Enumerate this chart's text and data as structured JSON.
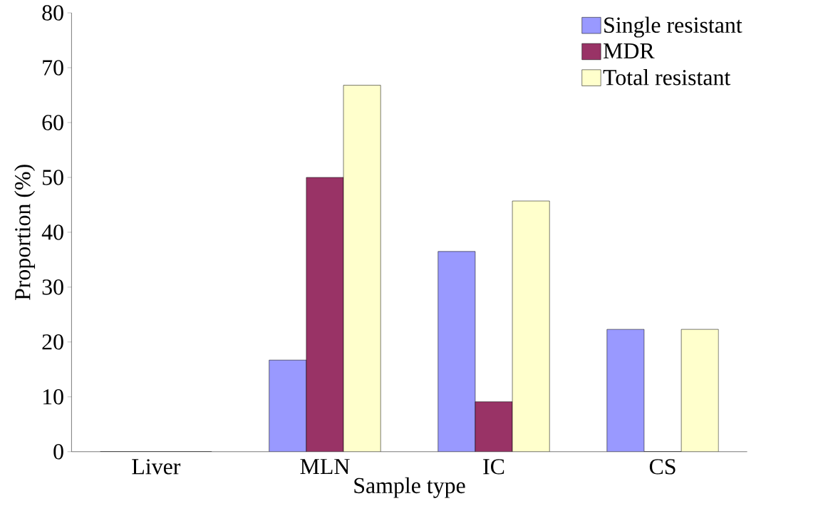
{
  "chart_data": {
    "type": "bar",
    "xlabel": "Sample type",
    "ylabel": "Proportion (%)",
    "categories": [
      "Liver",
      "MLN",
      "IC",
      "CS"
    ],
    "series": [
      {
        "name": "Single resistant",
        "color": "#9999ff",
        "values": [
          0,
          16.7,
          36.5,
          22.3
        ]
      },
      {
        "name": "MDR",
        "color": "#993366",
        "values": [
          0,
          50,
          9.1,
          0
        ]
      },
      {
        "name": "Total resistant",
        "color": "#ffffcc",
        "values": [
          0,
          66.8,
          45.7,
          22.3
        ]
      }
    ],
    "ylim": [
      0,
      80
    ],
    "yticks": [
      0,
      10,
      20,
      30,
      40,
      50,
      60,
      70,
      80
    ],
    "grid": false,
    "legend": "top right"
  }
}
